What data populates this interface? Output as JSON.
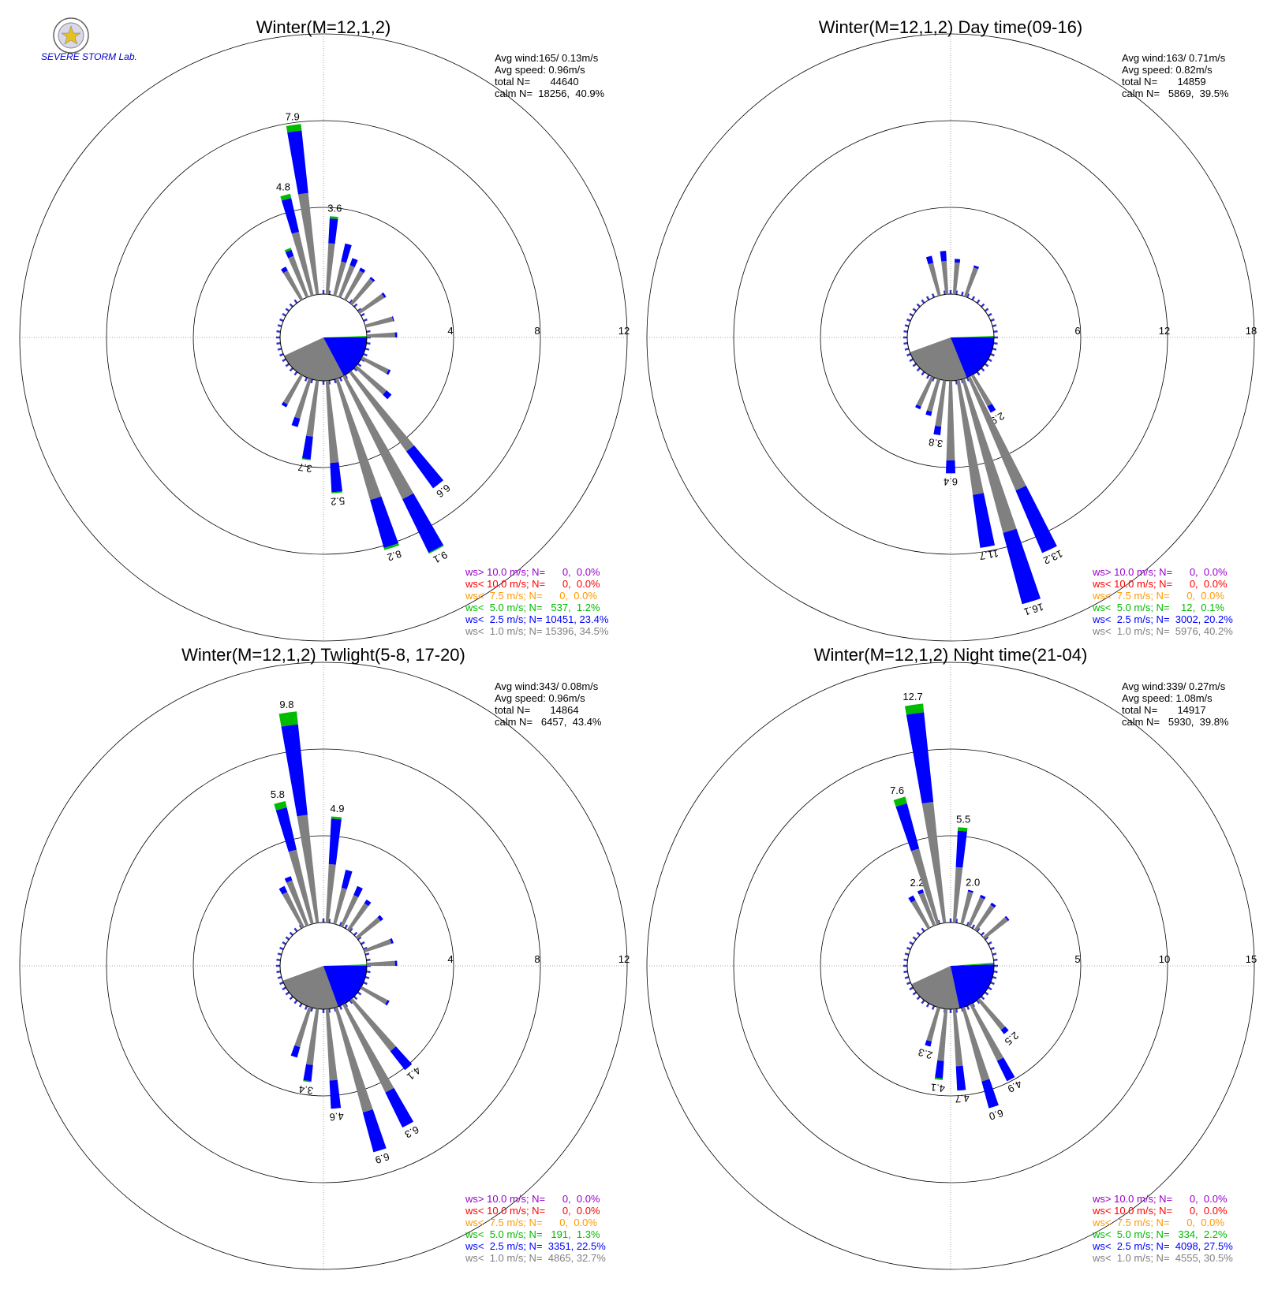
{
  "logo": {
    "text": "SEVERE STORM Lab."
  },
  "legend_colors": [
    "#9900cc",
    "#ff0000",
    "#ff9900",
    "#00bb00",
    "#0000ff",
    "#808080"
  ],
  "chart_data": [
    {
      "type": "windrose",
      "title": "Winter(M=12,1,2)",
      "max": 12,
      "ticks": [
        "4",
        "8",
        "12"
      ],
      "stats": [
        "Avg wind:165/ 0.13m/s",
        "Avg speed: 0.96m/s",
        "total N=       44640",
        "calm N=  18256,  40.9%"
      ],
      "calm": {
        "gray": [
          115,
          245
        ],
        "blue": [
          90,
          152
        ]
      },
      "spokes": [
        {
          "dir": 5,
          "gray": 2.35,
          "blue": 3.5,
          "green": 3.6,
          "label": "3.6"
        },
        {
          "dir": 15,
          "gray": 1.6,
          "blue": 2.45
        },
        {
          "dir": 22,
          "gray": 1.55,
          "blue": 1.9
        },
        {
          "dir": 30,
          "gray": 1.5,
          "blue": 1.65
        },
        {
          "dir": 40,
          "gray": 1.45,
          "blue": 1.55
        },
        {
          "dir": 55,
          "gray": 1.35,
          "blue": 1.45
        },
        {
          "dir": 75,
          "gray": 1.3,
          "blue": 1.35
        },
        {
          "dir": 88,
          "gray": 1.3,
          "blue": 1.4
        },
        {
          "dir": 118,
          "gray": 1.35,
          "blue": 1.45
        },
        {
          "dir": 132,
          "gray": 1.8,
          "blue": 2.1
        },
        {
          "dir": 142,
          "gray": 4.5,
          "blue": 6.6,
          "green": 6.6,
          "label": "6.6"
        },
        {
          "dir": 152,
          "gray": 6.3,
          "blue": 9.05,
          "green": 9.1,
          "label": "9.1"
        },
        {
          "dir": 162,
          "gray": 5.8,
          "blue": 8.1,
          "green": 8.2,
          "label": "8.2"
        },
        {
          "dir": 175,
          "gray": 3.8,
          "blue": 5.15,
          "green": 5.2,
          "label": "5.2"
        },
        {
          "dir": 188,
          "gray": 2.6,
          "blue": 3.65,
          "green": 3.7,
          "label": "3.7"
        },
        {
          "dir": 198,
          "gray": 1.9,
          "blue": 2.3
        },
        {
          "dir": 210,
          "gray": 1.5,
          "blue": 1.65
        },
        {
          "dir": 330,
          "gray": 1.5,
          "blue": 1.7
        },
        {
          "dir": 338,
          "gray": 2.0,
          "blue": 2.3,
          "green": 2.4
        },
        {
          "dir": 345,
          "gray": 3.0,
          "blue": 4.6,
          "green": 4.8,
          "label": "4.8"
        },
        {
          "dir": 352,
          "gray": 4.7,
          "blue": 7.6,
          "green": 7.9,
          "label": "7.9"
        }
      ],
      "legend": [
        "ws> 10.0 m/s; N=      0,  0.0%",
        "ws< 10.0 m/s; N=      0,  0.0%",
        "ws<  7.5 m/s; N=      0,  0.0%",
        "ws<  5.0 m/s; N=   537,  1.2%",
        "ws<  2.5 m/s; N= 10451, 23.4%",
        "ws<  1.0 m/s; N= 15396, 34.5%"
      ]
    },
    {
      "type": "windrose",
      "title": "Winter(M=12,1,2) Day time(09-16)",
      "max": 18,
      "ticks": [
        "6",
        "12",
        "18"
      ],
      "stats": [
        "Avg wind:163/ 0.71m/s",
        "Avg speed: 0.82m/s",
        "total N=       14859",
        "calm N=   5869,  39.5%"
      ],
      "calm": {
        "gray": [
          113,
          250
        ],
        "blue": [
          90,
          158
        ]
      },
      "spokes": [
        {
          "dir": 345,
          "gray": 2.3,
          "blue": 2.8
        },
        {
          "dir": 355,
          "gray": 2.3,
          "blue": 3.0
        },
        {
          "dir": 5,
          "gray": 2.2,
          "blue": 2.45
        },
        {
          "dir": 20,
          "gray": 2.1,
          "blue": 2.25
        },
        {
          "dir": 150,
          "gray": 2.4,
          "blue": 2.9,
          "label": "2.9"
        },
        {
          "dir": 155,
          "gray": 8.5,
          "blue": 13.2,
          "label": "13.2"
        },
        {
          "dir": 163,
          "gray": 11.0,
          "blue": 16.1,
          "label": "16.1"
        },
        {
          "dir": 170,
          "gray": 8.0,
          "blue": 11.7,
          "label": "11.7"
        },
        {
          "dir": 180,
          "gray": 5.5,
          "blue": 6.4,
          "label": "6.4"
        },
        {
          "dir": 188,
          "gray": 3.2,
          "blue": 3.8,
          "label": "3.8"
        },
        {
          "dir": 196,
          "gray": 2.3,
          "blue": 2.6
        },
        {
          "dir": 205,
          "gray": 2.2,
          "blue": 2.4
        }
      ],
      "legend": [
        "ws> 10.0 m/s; N=      0,  0.0%",
        "ws< 10.0 m/s; N=      0,  0.0%",
        "ws<  7.5 m/s; N=      0,  0.0%",
        "ws<  5.0 m/s; N=    12,  0.1%",
        "ws<  2.5 m/s; N=  3002, 20.2%",
        "ws<  1.0 m/s; N=  5976, 40.2%"
      ]
    },
    {
      "type": "windrose",
      "title": "Winter(M=12,1,2) Twlight(5-8, 17-20)",
      "max": 12,
      "ticks": [
        "4",
        "8",
        "12"
      ],
      "stats": [
        "Avg wind:343/ 0.08m/s",
        "Avg speed: 0.96m/s",
        "total N=       14864",
        "calm N=   6457,  43.4%"
      ],
      "calm": {
        "gray": [
          112,
          250
        ],
        "blue": [
          90,
          160
        ]
      },
      "spokes": [
        {
          "dir": 5,
          "gray": 2.7,
          "blue": 4.8,
          "green": 4.9,
          "label": "4.9"
        },
        {
          "dir": 15,
          "gray": 1.7,
          "blue": 2.55
        },
        {
          "dir": 25,
          "gray": 1.55,
          "blue": 2.0
        },
        {
          "dir": 35,
          "gray": 1.45,
          "blue": 1.65
        },
        {
          "dir": 50,
          "gray": 1.35,
          "blue": 1.5
        },
        {
          "dir": 70,
          "gray": 1.3,
          "blue": 1.4
        },
        {
          "dir": 88,
          "gray": 1.3,
          "blue": 1.4
        },
        {
          "dir": 120,
          "gray": 1.35,
          "blue": 1.45
        },
        {
          "dir": 140,
          "gray": 3.0,
          "blue": 4.1,
          "label": "4.1"
        },
        {
          "dir": 152,
          "gray": 4.5,
          "blue": 6.3,
          "label": "6.3"
        },
        {
          "dir": 163,
          "gray": 5.0,
          "blue": 6.9,
          "label": "6.9"
        },
        {
          "dir": 175,
          "gray": 3.3,
          "blue": 4.6,
          "label": "4.6"
        },
        {
          "dir": 188,
          "gray": 2.6,
          "blue": 3.35,
          "green": 3.4,
          "label": "3.4"
        },
        {
          "dir": 198,
          "gray": 1.9,
          "blue": 2.4
        },
        {
          "dir": 332,
          "gray": 1.8,
          "blue": 2.1
        },
        {
          "dir": 338,
          "gray": 2.2,
          "blue": 2.4
        },
        {
          "dir": 345,
          "gray": 3.5,
          "blue": 5.5,
          "green": 5.8,
          "label": "5.8"
        },
        {
          "dir": 352,
          "gray": 5.0,
          "blue": 9.2,
          "green": 9.8,
          "label": "9.8"
        }
      ],
      "legend": [
        "ws> 10.0 m/s; N=      0,  0.0%",
        "ws< 10.0 m/s; N=      0,  0.0%",
        "ws<  7.5 m/s; N=      0,  0.0%",
        "ws<  5.0 m/s; N=   191,  1.3%",
        "ws<  2.5 m/s; N=  3351, 22.5%",
        "ws<  1.0 m/s; N=  4865, 32.7%"
      ]
    },
    {
      "type": "windrose",
      "title": "Winter(M=12,1,2) Night time(21-04)",
      "max": 15,
      "ticks": [
        "5",
        "10",
        "15"
      ],
      "stats": [
        "Avg wind:339/ 0.27m/s",
        "Avg speed: 1.08m/s",
        "total N=       14917",
        "calm N=   5930,  39.8%"
      ],
      "calm": {
        "gray": [
          115,
          245
        ],
        "blue": [
          88,
          168
        ]
      },
      "spokes": [
        {
          "dir": 5,
          "gray": 3.2,
          "blue": 5.3,
          "green": 5.5,
          "label": "5.5"
        },
        {
          "dir": 15,
          "gray": 1.9,
          "blue": 2.0,
          "label": "2.0"
        },
        {
          "dir": 25,
          "gray": 1.8,
          "blue": 1.95
        },
        {
          "dir": 35,
          "gray": 1.7,
          "blue": 1.85
        },
        {
          "dir": 50,
          "gray": 1.7,
          "blue": 1.8
        },
        {
          "dir": 140,
          "gray": 2.2,
          "blue": 2.5,
          "label": "2.5"
        },
        {
          "dir": 152,
          "gray": 3.6,
          "blue": 4.9,
          "label": "4.9"
        },
        {
          "dir": 163,
          "gray": 4.4,
          "blue": 6.0,
          "label": "6.0"
        },
        {
          "dir": 175,
          "gray": 3.3,
          "blue": 4.7,
          "label": "4.7"
        },
        {
          "dir": 186,
          "gray": 3.0,
          "blue": 4.0,
          "green": 4.1,
          "label": "4.1"
        },
        {
          "dir": 196,
          "gray": 2.0,
          "blue": 2.3,
          "label": "2.3"
        },
        {
          "dir": 330,
          "gray": 1.8,
          "blue": 2.1
        },
        {
          "dir": 338,
          "gray": 2.0,
          "blue": 2.2,
          "label": "2.2"
        },
        {
          "dir": 343,
          "gray": 4.5,
          "blue": 7.2,
          "green": 7.6,
          "label": "7.6"
        },
        {
          "dir": 352,
          "gray": 7.0,
          "blue": 12.2,
          "green": 12.7,
          "label": "12.7"
        }
      ],
      "legend": [
        "ws> 10.0 m/s; N=      0,  0.0%",
        "ws< 10.0 m/s; N=      0,  0.0%",
        "ws<  7.5 m/s; N=      0,  0.0%",
        "ws<  5.0 m/s; N=   334,  2.2%",
        "ws<  2.5 m/s; N=  4098, 27.5%",
        "ws<  1.0 m/s; N=  4555, 30.5%"
      ]
    }
  ]
}
